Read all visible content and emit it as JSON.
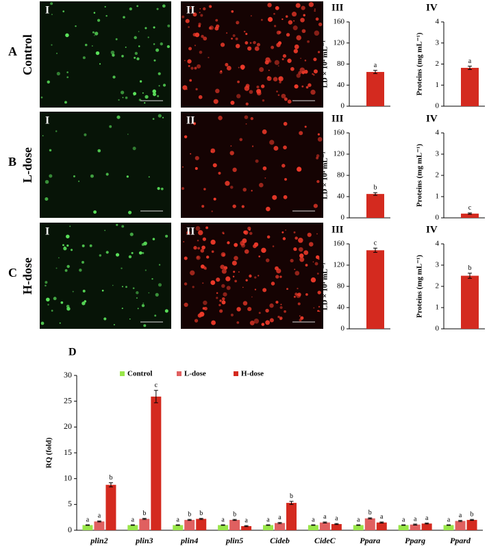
{
  "panels": [
    {
      "label": "A",
      "group": "Control",
      "image_labels": [
        "I",
        "II"
      ]
    },
    {
      "label": "B",
      "group": "L-dose",
      "image_labels": [
        "I",
        "II"
      ]
    },
    {
      "label": "C",
      "group": "H-dose",
      "image_labels": [
        "I",
        "II"
      ]
    }
  ],
  "chart_data": [
    {
      "type": "bar",
      "title": "III",
      "ylabel": "LD × 10⁴ mL⁻¹",
      "values": [
        65
      ],
      "errors": [
        3
      ],
      "significance": [
        "a"
      ],
      "color": "#d42a1f",
      "ylim": [
        0,
        160
      ],
      "yticks": [
        0,
        40,
        80,
        120,
        160
      ]
    },
    {
      "type": "bar",
      "title": "IV",
      "ylabel": "Proteins (mg mL⁻¹)",
      "values": [
        1.82
      ],
      "errors": [
        0.08
      ],
      "significance": [
        "a"
      ],
      "color": "#d42a1f",
      "ylim": [
        0,
        4
      ],
      "yticks": [
        0,
        1,
        2,
        3,
        4
      ]
    },
    {
      "type": "bar",
      "title": "III",
      "ylabel": "LD × 10⁴ mL⁻¹",
      "values": [
        45
      ],
      "errors": [
        2.5
      ],
      "significance": [
        "b"
      ],
      "color": "#d42a1f",
      "ylim": [
        0,
        160
      ],
      "yticks": [
        0,
        40,
        80,
        120,
        160
      ]
    },
    {
      "type": "bar",
      "title": "IV",
      "ylabel": "Proteins (mg mL⁻¹)",
      "values": [
        0.2
      ],
      "errors": [
        0.03
      ],
      "significance": [
        "c"
      ],
      "color": "#d42a1f",
      "ylim": [
        0,
        4
      ],
      "yticks": [
        0,
        1,
        2,
        3,
        4
      ]
    },
    {
      "type": "bar",
      "title": "III",
      "ylabel": "LD × 10⁴ mL⁻¹",
      "values": [
        148
      ],
      "errors": [
        4
      ],
      "significance": [
        "c"
      ],
      "color": "#d42a1f",
      "ylim": [
        0,
        160
      ],
      "yticks": [
        0,
        40,
        80,
        120,
        160
      ]
    },
    {
      "type": "bar",
      "title": "IV",
      "ylabel": "Proteins (mg mL⁻¹)",
      "values": [
        2.5
      ],
      "errors": [
        0.12
      ],
      "significance": [
        "b"
      ],
      "color": "#d42a1f",
      "ylim": [
        0,
        4
      ],
      "yticks": [
        0,
        1,
        2,
        3,
        4
      ]
    },
    {
      "type": "bar",
      "title": "D",
      "ylabel": "RQ (fold)",
      "legend": "top",
      "categories": [
        "plin2",
        "plin3",
        "plin4",
        "plin5",
        "Cideb",
        "CideC",
        "Ppara",
        "Pparg",
        "Ppard"
      ],
      "series": [
        {
          "name": "Control",
          "color": "#99e64a",
          "values": [
            1,
            1,
            1,
            1,
            1,
            1,
            1,
            1,
            1
          ],
          "errors": [
            0.05,
            0.05,
            0.05,
            0.05,
            0.05,
            0.05,
            0.05,
            0.05,
            0.05
          ],
          "significance": [
            "a",
            "a",
            "a",
            "a",
            "a",
            "a",
            "a",
            "a",
            "a"
          ]
        },
        {
          "name": "L-dose",
          "color": "#e06060",
          "values": [
            1.7,
            2.2,
            2.0,
            2.0,
            1.4,
            1.5,
            2.3,
            1.1,
            1.8
          ],
          "errors": [
            0.1,
            0.1,
            0.1,
            0.1,
            0.1,
            0.1,
            0.1,
            0.1,
            0.1
          ],
          "significance": [
            "a",
            "b",
            "b",
            "b",
            "a",
            "a",
            "b",
            "a",
            "a"
          ]
        },
        {
          "name": "H-dose",
          "color": "#d42a1f",
          "values": [
            8.8,
            25.9,
            2.2,
            0.8,
            5.3,
            1.2,
            1.5,
            1.3,
            2.0
          ],
          "errors": [
            0.4,
            1.2,
            0.1,
            0.1,
            0.3,
            0.1,
            0.1,
            0.1,
            0.1
          ],
          "significance": [
            "b",
            "c",
            "b",
            "a",
            "b",
            "a",
            "a",
            "a",
            "b"
          ]
        }
      ],
      "ylim": [
        0,
        30
      ],
      "yticks": [
        0,
        5,
        10,
        15,
        20,
        25,
        30
      ]
    }
  ]
}
